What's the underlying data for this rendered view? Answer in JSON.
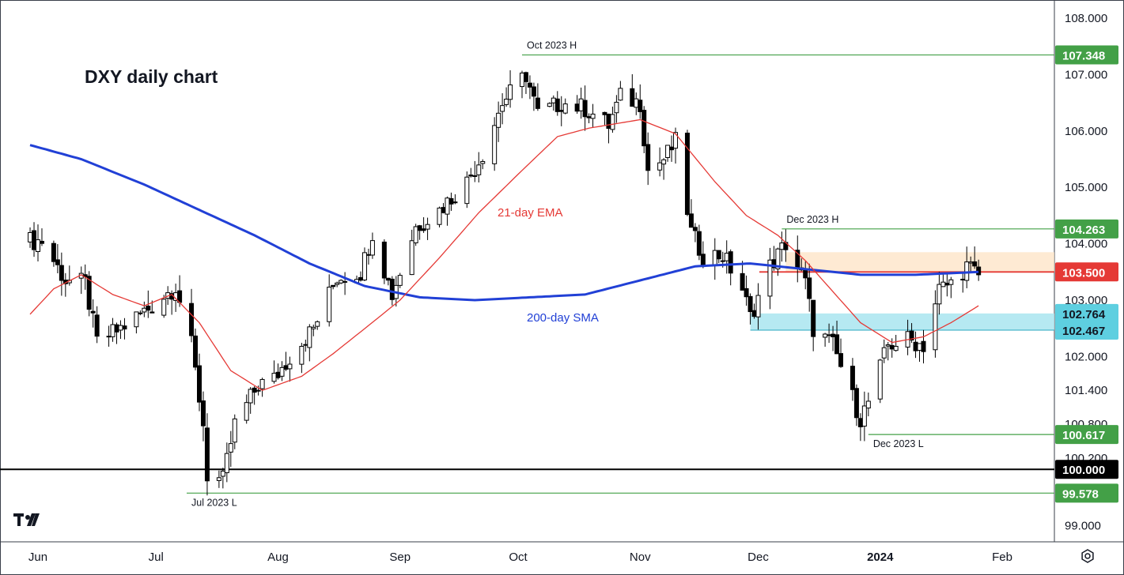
{
  "chart_title": "DXY daily chart",
  "colors": {
    "background": "#ffffff",
    "text": "#131722",
    "ema": "#e53935",
    "sma": "#2140d6",
    "green_line": "#43a047",
    "green_tag": "#43a047",
    "red_line": "#e53935",
    "resistance_zone": "#fde3c4",
    "support_zone": "#a9e5f0",
    "black_line": "#000000"
  },
  "toolbar": {
    "settings_icon": "gear-icon"
  },
  "chart_data": {
    "type": "candlestick",
    "title": "DXY daily chart",
    "x_tick_labels": [
      "Jun",
      "Jul",
      "Aug",
      "Sep",
      "Oct",
      "Nov",
      "Dec",
      "2024",
      "Feb"
    ],
    "y_tick_labels": [
      "108.000",
      "107.000",
      "106.000",
      "105.000",
      "104.000",
      "103.000",
      "102.000",
      "101.400",
      "100.800",
      "100.200",
      "99.000"
    ],
    "y_ticks": [
      108.0,
      107.0,
      106.0,
      105.0,
      104.0,
      103.0,
      102.0,
      101.4,
      100.8,
      100.2,
      99.0
    ],
    "ylim": [
      98.8,
      108.2
    ],
    "indicators": [
      {
        "name": "21-day EMA",
        "color": "#e53935"
      },
      {
        "name": "200-day SMA",
        "color": "#2140d6"
      }
    ],
    "price_levels": [
      {
        "value": 107.348,
        "label": "107.348",
        "annotation": "Oct 2023 H",
        "color": "#43a047"
      },
      {
        "value": 104.263,
        "label": "104.263",
        "annotation": "Dec 2023 H",
        "color": "#43a047"
      },
      {
        "value": 103.5,
        "label": "103.500",
        "annotation": "",
        "color": "#e53935"
      },
      {
        "value": 102.764,
        "label": "102.764",
        "annotation": "",
        "color": "#a9e5f0"
      },
      {
        "value": 102.467,
        "label": "102.467",
        "annotation": "",
        "color": "#a9e5f0"
      },
      {
        "value": 100.617,
        "label": "100.617",
        "annotation": "Dec 2023 L",
        "color": "#43a047"
      },
      {
        "value": 100.0,
        "label": "100.000",
        "annotation": "",
        "color": "#000000"
      },
      {
        "value": 99.578,
        "label": "99.578",
        "annotation": "Jul 2023 L",
        "color": "#43a047"
      }
    ],
    "zones": [
      {
        "name": "resistance",
        "from": 103.5,
        "to": 103.85,
        "color": "#fde3c4"
      },
      {
        "name": "support",
        "from": 102.467,
        "to": 102.764,
        "color": "#a9e5f0"
      }
    ],
    "close_anchors": [
      [
        "2023-05-30",
        104.05
      ],
      [
        "2023-06-02",
        104.05
      ],
      [
        "2023-06-08",
        103.35
      ],
      [
        "2023-06-13",
        103.3
      ],
      [
        "2023-06-16",
        102.25
      ],
      [
        "2023-06-22",
        102.5
      ],
      [
        "2023-06-30",
        102.9
      ],
      [
        "2023-07-06",
        103.25
      ],
      [
        "2023-07-10",
        102.2
      ],
      [
        "2023-07-13",
        100.8
      ],
      [
        "2023-07-14",
        99.9
      ],
      [
        "2023-07-18",
        99.8
      ],
      [
        "2023-07-21",
        100.8
      ],
      [
        "2023-07-27",
        101.5
      ],
      [
        "2023-07-31",
        101.6
      ],
      [
        "2023-08-04",
        102.0
      ],
      [
        "2023-08-10",
        102.5
      ],
      [
        "2023-08-16",
        103.4
      ],
      [
        "2023-08-22",
        103.5
      ],
      [
        "2023-08-25",
        104.2
      ],
      [
        "2023-08-30",
        103.1
      ],
      [
        "2023-09-05",
        104.3
      ],
      [
        "2023-09-11",
        104.6
      ],
      [
        "2023-09-18",
        105.1
      ],
      [
        "2023-09-22",
        105.6
      ],
      [
        "2023-09-27",
        106.5
      ],
      [
        "2023-10-03",
        107.0
      ],
      [
        "2023-10-06",
        106.3
      ],
      [
        "2023-10-12",
        106.5
      ],
      [
        "2023-10-18",
        106.4
      ],
      [
        "2023-10-24",
        106.1
      ],
      [
        "2023-10-27",
        106.6
      ],
      [
        "2023-11-01",
        106.5
      ],
      [
        "2023-11-03",
        105.3
      ],
      [
        "2023-11-07",
        105.5
      ],
      [
        "2023-11-10",
        105.8
      ],
      [
        "2023-11-14",
        104.2
      ],
      [
        "2023-11-17",
        103.8
      ],
      [
        "2023-11-22",
        103.8
      ],
      [
        "2023-11-27",
        103.2
      ],
      [
        "2023-11-29",
        102.7
      ],
      [
        "2023-12-04",
        103.6
      ],
      [
        "2023-12-08",
        104.0
      ],
      [
        "2023-12-13",
        103.3
      ],
      [
        "2023-12-15",
        102.5
      ],
      [
        "2023-12-20",
        102.2
      ],
      [
        "2023-12-27",
        100.9
      ],
      [
        "2023-12-29",
        101.2
      ],
      [
        "2024-01-03",
        102.2
      ],
      [
        "2024-01-08",
        102.3
      ],
      [
        "2024-01-12",
        102.2
      ],
      [
        "2024-01-16",
        103.2
      ],
      [
        "2024-01-19",
        103.3
      ],
      [
        "2024-01-23",
        103.6
      ],
      [
        "2024-01-26",
        103.45
      ]
    ],
    "ema_anchors": [
      [
        "2023-05-30",
        102.75
      ],
      [
        "2023-06-05",
        103.2
      ],
      [
        "2023-06-12",
        103.45
      ],
      [
        "2023-06-20",
        103.1
      ],
      [
        "2023-06-28",
        102.9
      ],
      [
        "2023-07-05",
        103.1
      ],
      [
        "2023-07-12",
        102.6
      ],
      [
        "2023-07-20",
        101.75
      ],
      [
        "2023-07-28",
        101.4
      ],
      [
        "2023-08-07",
        101.65
      ],
      [
        "2023-08-15",
        102.05
      ],
      [
        "2023-08-24",
        102.55
      ],
      [
        "2023-09-01",
        103.0
      ],
      [
        "2023-09-11",
        103.75
      ],
      [
        "2023-09-21",
        104.55
      ],
      [
        "2023-10-02",
        105.3
      ],
      [
        "2023-10-11",
        105.9
      ],
      [
        "2023-10-19",
        106.05
      ],
      [
        "2023-11-01",
        106.2
      ],
      [
        "2023-11-10",
        105.95
      ],
      [
        "2023-11-20",
        105.1
      ],
      [
        "2023-11-28",
        104.5
      ],
      [
        "2023-12-06",
        104.15
      ],
      [
        "2023-12-13",
        103.7
      ],
      [
        "2023-12-20",
        103.15
      ],
      [
        "2023-12-27",
        102.6
      ],
      [
        "2024-01-04",
        102.25
      ],
      [
        "2024-01-12",
        102.35
      ],
      [
        "2024-01-19",
        102.6
      ],
      [
        "2024-01-26",
        102.9
      ]
    ],
    "sma_anchors": [
      [
        "2023-05-30",
        105.75
      ],
      [
        "2023-06-12",
        105.5
      ],
      [
        "2023-06-28",
        105.05
      ],
      [
        "2023-07-12",
        104.6
      ],
      [
        "2023-07-26",
        104.15
      ],
      [
        "2023-08-09",
        103.65
      ],
      [
        "2023-08-23",
        103.25
      ],
      [
        "2023-09-06",
        103.05
      ],
      [
        "2023-09-20",
        103.0
      ],
      [
        "2023-10-04",
        103.05
      ],
      [
        "2023-10-18",
        103.1
      ],
      [
        "2023-11-01",
        103.35
      ],
      [
        "2023-11-15",
        103.6
      ],
      [
        "2023-11-29",
        103.65
      ],
      [
        "2023-12-13",
        103.55
      ],
      [
        "2023-12-27",
        103.45
      ],
      [
        "2024-01-10",
        103.45
      ],
      [
        "2024-01-26",
        103.5
      ]
    ]
  }
}
